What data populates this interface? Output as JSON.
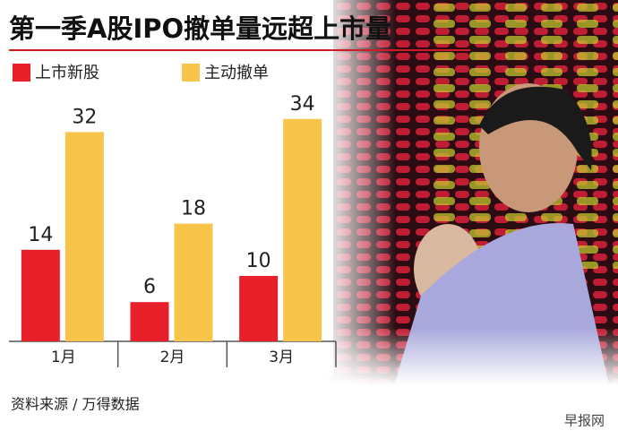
{
  "chart_data": {
    "type": "bar",
    "title": "第一季A股IPO撤单量远超上市量",
    "categories": [
      "1月",
      "2月",
      "3月"
    ],
    "series": [
      {
        "name": "上市新股",
        "color": "#e8202a",
        "values": [
          14,
          6,
          10
        ]
      },
      {
        "name": "主动撤单",
        "color": "#f8c44a",
        "values": [
          32,
          18,
          34
        ]
      }
    ],
    "source": "资料来源 / 万得数据",
    "watermark": "早报网"
  }
}
